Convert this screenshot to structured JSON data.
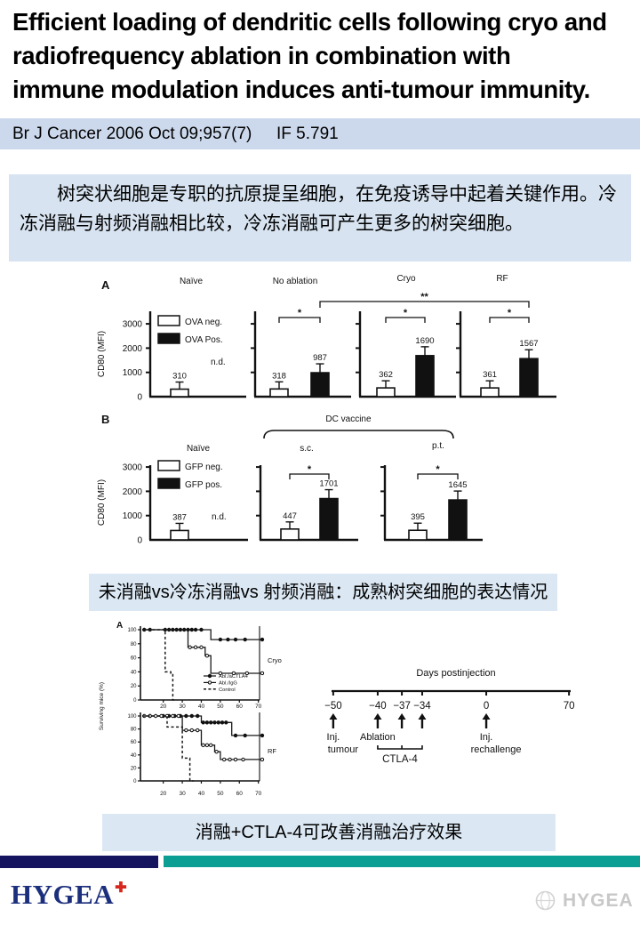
{
  "slide": {
    "title_lines": [
      "Efficient loading of dendritic cells following cryo and",
      "radiofrequency ablation in combination with",
      "immune modulation induces anti-tumour immunity."
    ],
    "journal_ref": "Br J Cancer 2006 Oct 09;957(7)",
    "impact_factor": "IF 5.791",
    "abstract_cn": "树突状细胞是专职的抗原提呈细胞，在免疫诱导中起着关键作用。冷冻消融与射频消融相比较，冷冻消融可产生更多的树突细胞。",
    "caption_figure1": "未消融vs冷冻消融vs 射频消融：成熟树突细胞的表达情况",
    "caption_figure2": "消融+CTLA-4可改善消融治疗效果",
    "logo_text": "HYGEA",
    "logo_cross": "✚",
    "watermark_text": "HYGEA",
    "colors": {
      "journal_bar_bg": "#ccd9ec",
      "abstract_bg": "#d7e3f0",
      "caption_bg": "#dbe8f4",
      "footer_navy": "#14155e",
      "footer_teal": "#0b9f94",
      "logo_navy": "#1c2f7d",
      "logo_red": "#d6261d"
    }
  },
  "chart_data": [
    {
      "id": "figA",
      "type": "bar",
      "panel_label": "A",
      "ylabel": "CD80 (MFI)",
      "yticks": [
        0,
        1000,
        2000,
        3000
      ],
      "ylim": [
        0,
        3500
      ],
      "legend": [
        "OVA neg.",
        "OVA Pos."
      ],
      "groups": [
        {
          "title": "Naïve",
          "values": [
            310,
            null
          ],
          "note": "n.d."
        },
        {
          "title": "No ablation",
          "values": [
            318,
            987
          ],
          "sig": "*"
        },
        {
          "title": "Cryo",
          "values": [
            362,
            1690
          ],
          "sig": "*"
        },
        {
          "title": "RF",
          "values": [
            361,
            1567
          ],
          "sig": "*"
        }
      ],
      "cross_sig": {
        "from": "No ablation",
        "to": "RF",
        "label": "**"
      }
    },
    {
      "id": "figB",
      "type": "bar",
      "panel_label": "B",
      "ylabel": "CD80 (MFI)",
      "yticks": [
        0,
        1000,
        2000,
        3000
      ],
      "ylim": [
        0,
        3500
      ],
      "legend": [
        "GFP neg.",
        "GFP pos."
      ],
      "bracket_label": "DC vaccine",
      "groups": [
        {
          "title": "Naïve",
          "values": [
            387,
            null
          ],
          "note": "n.d."
        },
        {
          "title": "s.c.",
          "values": [
            447,
            1701
          ],
          "sig": "*"
        },
        {
          "title": "p.t.",
          "values": [
            395,
            1645
          ],
          "sig": "*"
        }
      ]
    },
    {
      "id": "figSurv",
      "type": "line",
      "panel_label": "A",
      "ylabel": "Surviving mice (%)",
      "xticks": [
        20,
        30,
        40,
        50,
        60,
        70
      ],
      "yticks": [
        0,
        20,
        40,
        60,
        80,
        100
      ],
      "legend": [
        {
          "label": "Abl./aCTLA4",
          "style": "solid-filled"
        },
        {
          "label": "Abl./IgG",
          "style": "solid-open"
        },
        {
          "label": "Control",
          "style": "dashed"
        }
      ],
      "panels": [
        {
          "side_label": "Cryo",
          "series": [
            {
              "name": "Abl./aCTLA4",
              "style": "solid-filled",
              "steps": [
                [
                  9,
                  100
                ],
                [
                  45,
                  100
                ],
                [
                  45,
                  86
                ],
                [
                  72,
                  86
                ]
              ],
              "markers": [
                [
                  10,
                  100
                ],
                [
                  13,
                  100
                ],
                [
                  21,
                  100
                ],
                [
                  23,
                  100
                ],
                [
                  25,
                  100
                ],
                [
                  27,
                  100
                ],
                [
                  29,
                  100
                ],
                [
                  31,
                  100
                ],
                [
                  33,
                  100
                ],
                [
                  35,
                  100
                ],
                [
                  37,
                  100
                ],
                [
                  40,
                  100
                ],
                [
                  50,
                  86
                ],
                [
                  54,
                  86
                ],
                [
                  58,
                  86
                ],
                [
                  63,
                  86
                ],
                [
                  72,
                  86
                ]
              ]
            },
            {
              "name": "Abl./IgG",
              "style": "solid-open",
              "steps": [
                [
                  9,
                  100
                ],
                [
                  33,
                  100
                ],
                [
                  33,
                  75
                ],
                [
                  42,
                  75
                ],
                [
                  42,
                  63
                ],
                [
                  45,
                  63
                ],
                [
                  45,
                  38
                ],
                [
                  72,
                  38
                ]
              ],
              "markers": [
                [
                  34,
                  75
                ],
                [
                  37,
                  75
                ],
                [
                  40,
                  75
                ],
                [
                  43,
                  63
                ],
                [
                  50,
                  38
                ],
                [
                  57,
                  38
                ],
                [
                  64,
                  38
                ],
                [
                  72,
                  38
                ]
              ]
            },
            {
              "name": "Control",
              "style": "dashed",
              "steps": [
                [
                  9,
                  100
                ],
                [
                  21,
                  100
                ],
                [
                  21,
                  40
                ],
                [
                  24,
                  40
                ],
                [
                  24,
                  38
                ],
                [
                  25,
                  38
                ],
                [
                  25,
                  0
                ],
                [
                  27,
                  0
                ]
              ],
              "markers": []
            }
          ]
        },
        {
          "side_label": "RF",
          "series": [
            {
              "name": "Abl./aCTLA4",
              "style": "solid-filled",
              "steps": [
                [
                  9,
                  100
                ],
                [
                  40,
                  100
                ],
                [
                  40,
                  90
                ],
                [
                  56,
                  90
                ],
                [
                  56,
                  70
                ],
                [
                  72,
                  70
                ]
              ],
              "markers": [
                [
                  13,
                  100
                ],
                [
                  20,
                  100
                ],
                [
                  23,
                  100
                ],
                [
                  26,
                  100
                ],
                [
                  29,
                  100
                ],
                [
                  32,
                  100
                ],
                [
                  35,
                  100
                ],
                [
                  38,
                  100
                ],
                [
                  41,
                  90
                ],
                [
                  43,
                  90
                ],
                [
                  45,
                  90
                ],
                [
                  47,
                  90
                ],
                [
                  49,
                  90
                ],
                [
                  51,
                  90
                ],
                [
                  53,
                  90
                ],
                [
                  58,
                  70
                ],
                [
                  63,
                  70
                ],
                [
                  72,
                  70
                ]
              ]
            },
            {
              "name": "Abl./IgG",
              "style": "solid-open",
              "steps": [
                [
                  9,
                  100
                ],
                [
                  30,
                  100
                ],
                [
                  30,
                  78
                ],
                [
                  40,
                  78
                ],
                [
                  40,
                  55
                ],
                [
                  47,
                  55
                ],
                [
                  47,
                  45
                ],
                [
                  50,
                  45
                ],
                [
                  50,
                  33
                ],
                [
                  72,
                  33
                ]
              ],
              "markers": [
                [
                  10,
                  100
                ],
                [
                  13,
                  100
                ],
                [
                  16,
                  100
                ],
                [
                  19,
                  100
                ],
                [
                  22,
                  100
                ],
                [
                  25,
                  100
                ],
                [
                  28,
                  100
                ],
                [
                  32,
                  78
                ],
                [
                  35,
                  78
                ],
                [
                  38,
                  78
                ],
                [
                  41,
                  55
                ],
                [
                  43,
                  55
                ],
                [
                  45,
                  55
                ],
                [
                  48,
                  45
                ],
                [
                  52,
                  33
                ],
                [
                  55,
                  33
                ],
                [
                  58,
                  33
                ],
                [
                  62,
                  33
                ],
                [
                  72,
                  33
                ]
              ]
            },
            {
              "name": "Control",
              "style": "dashed",
              "steps": [
                [
                  9,
                  100
                ],
                [
                  22,
                  100
                ],
                [
                  22,
                  83
                ],
                [
                  30,
                  83
                ],
                [
                  30,
                  35
                ],
                [
                  34,
                  35
                ],
                [
                  34,
                  0
                ],
                [
                  36,
                  0
                ]
              ],
              "markers": []
            }
          ]
        }
      ]
    },
    {
      "id": "figTime",
      "type": "diagram",
      "title": "Days postinjection",
      "ticks": [
        {
          "label": "−50",
          "pos": 0.007,
          "arrow": true
        },
        {
          "label": "−40",
          "pos": 0.193,
          "arrow": true
        },
        {
          "label": "−37",
          "pos": 0.294,
          "arrow": true
        },
        {
          "label": "−34",
          "pos": 0.379,
          "arrow": true
        },
        {
          "label": "0",
          "pos": 0.647,
          "arrow": true
        },
        {
          "label": "70",
          "pos": 0.993,
          "arrow": false
        }
      ],
      "annotations": [
        {
          "tick": 0,
          "lines": [
            "Inj.",
            "tumour"
          ]
        },
        {
          "tick": 1,
          "lines": [
            "Ablation"
          ]
        },
        {
          "tick": 4,
          "lines": [
            "Inj.",
            "rechallenge"
          ]
        }
      ],
      "bracket": {
        "from": 1,
        "to": 3,
        "label": "CTLA-4"
      }
    }
  ]
}
